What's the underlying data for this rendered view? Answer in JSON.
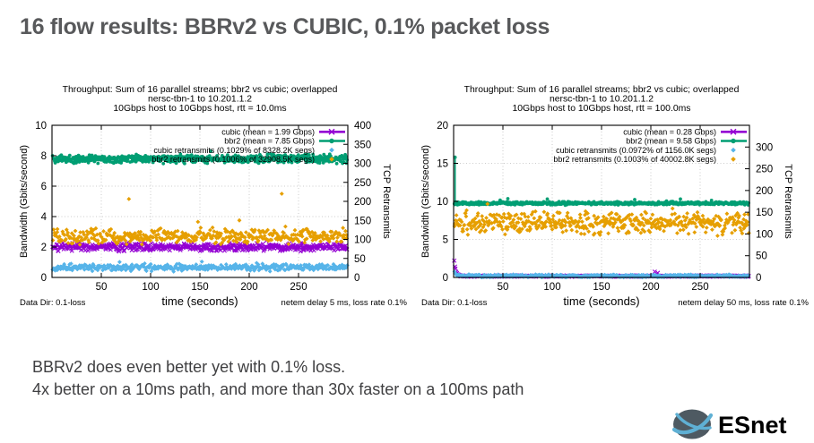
{
  "slide": {
    "title": "16 flow results: BBRv2 vs CUBIC, 0.1% packet loss",
    "notes": [
      "BBRv2 does even better yet with 0.1% loss.",
      "4x better on a 10ms path, and more than 30x faster on a 100ms path"
    ],
    "logo_text": "ESnet",
    "colors": {
      "title_text": "#58595b",
      "notes_text": "#404042",
      "logo_text": "#66686b",
      "logo_globe": "#4e5a62",
      "logo_swoosh": "#5fb0d4",
      "grid": "#bcbcbc"
    }
  },
  "chart_data": [
    {
      "type": "scatter",
      "title_lines": [
        "Throughput: Sum of 16 parallel streams; bbr2 vs cubic; overlapped",
        "nersc-tbn-1 to 10.201.1.2",
        "10Gbps host to 10Gbps host, rtt = 10.0ms"
      ],
      "xlabel": "time (seconds)",
      "x_range": [
        0,
        300
      ],
      "x_ticks": [
        50,
        100,
        150,
        200,
        250
      ],
      "left_axis": {
        "label": "Bandwidth (Gbits/second)",
        "range": [
          0,
          10
        ],
        "ticks": [
          0,
          2,
          4,
          6,
          8,
          10
        ]
      },
      "right_axis": {
        "label": "TCP Retransmits",
        "range": [
          0,
          400
        ],
        "ticks": [
          0,
          50,
          100,
          150,
          200,
          250,
          300,
          350,
          400
        ]
      },
      "legend": [
        {
          "label": "cubic (mean = 1.99 Gbps)",
          "sample": "line-x",
          "color": "#9400d3"
        },
        {
          "label": "bbr2 (mean = 7.85 Gbps)",
          "sample": "line-circle",
          "color": "#009e73"
        },
        {
          "label": "cubic retransmits (0.1029% of 8328.2K segs)",
          "sample": "diamond",
          "color": "#56b4e9"
        },
        {
          "label": "bbr2 retransmits (0.1006% of 32908.5K segs)",
          "sample": "diamond",
          "color": "#e69f00"
        }
      ],
      "footer": {
        "left": "Data Dir: 0.1-loss",
        "right": "netem delay 5 ms, loss rate 0.1%"
      },
      "series": [
        {
          "name": "cubic",
          "color": "#9400d3",
          "marker": "x",
          "axis": "left",
          "pattern": "band",
          "mean": 2.0,
          "jitter": 0.3,
          "points": 520
        },
        {
          "name": "bbr2",
          "color": "#009e73",
          "marker": "circle",
          "axis": "left",
          "pattern": "band",
          "mean": 7.8,
          "jitter": 0.33,
          "points": 620
        },
        {
          "name": "cubic-retransmits",
          "color": "#56b4e9",
          "marker": "diamond",
          "axis": "right",
          "pattern": "band",
          "mean": 26,
          "jitter": 11,
          "points": 430
        },
        {
          "name": "bbr2-retransmits",
          "color": "#e69f00",
          "marker": "diamond",
          "axis": "right",
          "pattern": "band",
          "mean": 108,
          "jitter": 24,
          "points": 430,
          "outliers": [
            [
              78,
              206
            ],
            [
              148,
              146
            ],
            [
              190,
              150
            ],
            [
              233,
              220
            ]
          ]
        }
      ]
    },
    {
      "type": "scatter",
      "title_lines": [
        "Throughput: Sum of 16 parallel streams; bbr2 vs cubic; overlapped",
        "nersc-tbn-1 to 10.201.1.2",
        "10Gbps host to 10Gbps host, rtt = 100.0ms"
      ],
      "xlabel": "time (seconds)",
      "x_range": [
        0,
        300
      ],
      "x_ticks": [
        50,
        100,
        150,
        200,
        250
      ],
      "left_axis": {
        "label": "Bandwidth (Gbits/second)",
        "range": [
          0,
          20
        ],
        "ticks": [
          0,
          5,
          10,
          15,
          20
        ]
      },
      "right_axis": {
        "label": "TCP Retransmits",
        "range": [
          0,
          350
        ],
        "ticks": [
          0,
          50,
          100,
          150,
          200,
          250,
          300
        ]
      },
      "legend": [
        {
          "label": "cubic (mean = 0.28 Gbps)",
          "sample": "line-x",
          "color": "#9400d3"
        },
        {
          "label": "bbr2 (mean = 9.58 Gbps)",
          "sample": "line-circle",
          "color": "#009e73"
        },
        {
          "label": "cubic retransmits (0.0972% of 1156.0K segs)",
          "sample": "diamond",
          "color": "#56b4e9"
        },
        {
          "label": "bbr2 retransmits (0.1003% of 40002.8K segs)",
          "sample": "diamond",
          "color": "#e69f00"
        }
      ],
      "footer": {
        "left": "Data Dir: 0.1-loss",
        "right": "netem delay 50 ms, loss rate 0.1%"
      },
      "series": [
        {
          "name": "cubic",
          "color": "#9400d3",
          "marker": "x",
          "axis": "left",
          "pattern": "decay",
          "start": 3.3,
          "floor": 0.18,
          "tau": 1.6,
          "jitter": 0.1,
          "points": 520,
          "outliers": [
            [
              204,
              0.75
            ],
            [
              207,
              0.6
            ]
          ]
        },
        {
          "name": "bbr2",
          "color": "#009e73",
          "marker": "circle",
          "axis": "left",
          "pattern": "band",
          "mean": 9.75,
          "jitter": 0.23,
          "points": 620,
          "spike": {
            "x": 1.5,
            "y": 15.8
          },
          "outliers": [
            [
              55,
              10.35
            ],
            [
              95,
              10.3
            ],
            [
              230,
              10.3
            ]
          ]
        },
        {
          "name": "cubic-retransmits",
          "color": "#56b4e9",
          "marker": "diamond",
          "axis": "right",
          "pattern": "decay",
          "start": 24,
          "floor": 3.5,
          "tau": 1.6,
          "jitter": 3.5,
          "points": 520
        },
        {
          "name": "bbr2-retransmits",
          "color": "#e69f00",
          "marker": "diamond",
          "axis": "right",
          "pattern": "band",
          "mean": 126,
          "jitter": 31,
          "points": 500
        }
      ]
    }
  ]
}
